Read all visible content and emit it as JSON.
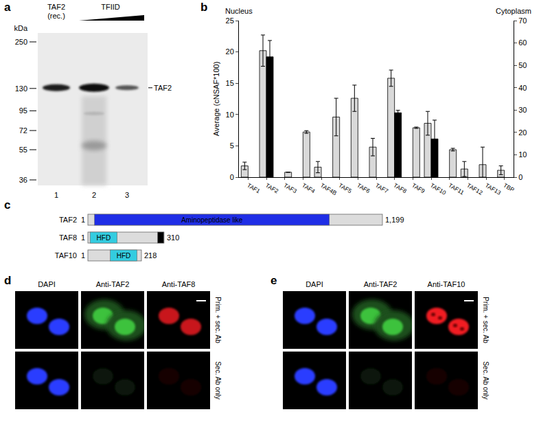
{
  "panel_a": {
    "label": "a",
    "lane1_header": [
      "TAF2",
      "(rec.)"
    ],
    "group_header": "TFIID",
    "unit": "kDa",
    "markers": [
      250,
      130,
      95,
      72,
      55,
      36
    ],
    "lanes": [
      "1",
      "2",
      "3"
    ],
    "band_label": "TAF2"
  },
  "chart_data": {
    "label": "b",
    "type": "bar",
    "y_axis_title": "Average (cNSAF*100)",
    "y_axis_caption": "Nucleus",
    "y2_axis_caption": "Cytoplasm",
    "categories": [
      "TAF1",
      "TAF2",
      "TAF3",
      "TAF4",
      "TAF4B",
      "TAF5",
      "TAF6",
      "TAF7",
      "TAF8",
      "TAF9",
      "TAF10",
      "TAF11",
      "TAF12",
      "TAF13",
      "TBP"
    ],
    "series": [
      {
        "name": "Nucleus",
        "axis": "y",
        "color": "#d9d9d9",
        "values": [
          1.8,
          20.2,
          null,
          null,
          1.6,
          9.6,
          12.6,
          4.8,
          15.8,
          null,
          8.6,
          null,
          1.3,
          2.0,
          1.1
        ],
        "errors": [
          0.6,
          2.5,
          null,
          null,
          0.9,
          3.0,
          2.1,
          1.4,
          1.3,
          null,
          1.9,
          null,
          1.2,
          2.8,
          0.7
        ]
      },
      {
        "name": "Cytoplasm",
        "axis": "y2",
        "colors": [
          "#d9d9d9",
          "#000000",
          "#d9d9d9",
          "#d9d9d9",
          "#d9d9d9",
          "#d9d9d9",
          "#d9d9d9",
          "#d9d9d9",
          "#000000",
          "#d9d9d9",
          "#000000",
          "#d9d9d9",
          "#d9d9d9",
          "#d9d9d9",
          "#d9d9d9"
        ],
        "values": [
          null,
          53.8,
          2.2,
          20.2,
          null,
          null,
          null,
          null,
          28.8,
          22.1,
          17.1,
          12.3,
          null,
          null,
          null
        ],
        "errors": [
          null,
          7.3,
          0,
          0.6,
          null,
          null,
          null,
          null,
          1.1,
          0.3,
          8.4,
          0.6,
          null,
          null,
          null
        ]
      }
    ],
    "ylim": [
      0,
      25
    ],
    "yticks": [
      0,
      5,
      10,
      15,
      20,
      25
    ],
    "y2lim": [
      0,
      70
    ],
    "y2ticks": [
      0,
      10,
      20,
      30,
      40,
      50,
      60,
      70
    ],
    "grid": false
  },
  "panel_c": {
    "label": "c",
    "proteins": [
      {
        "name": "TAF2",
        "start": 1,
        "length": 1199,
        "length_label": "1,199",
        "domains": [
          {
            "label": "Aminopeptidase like",
            "start": 28,
            "end": 984,
            "color": "#1f2ee6"
          }
        ]
      },
      {
        "name": "TAF8",
        "start": 1,
        "length": 310,
        "domains": [
          {
            "label": "HFD",
            "start": 10,
            "end": 120,
            "color": "#33cce0"
          },
          {
            "start": 285,
            "end": 310,
            "color": "#000000"
          }
        ]
      },
      {
        "name": "TAF10",
        "start": 1,
        "length": 218,
        "domains": [
          {
            "label": "HFD",
            "start": 92,
            "end": 201,
            "color": "#33cce0"
          }
        ]
      }
    ]
  },
  "panel_d": {
    "label": "d",
    "columns": [
      "DAPI",
      "Anti-TAF2",
      "Anti-TAF8"
    ],
    "rows": [
      "Prim. + sec. Ab",
      "Sec. Ab only"
    ]
  },
  "panel_e": {
    "label": "e",
    "columns": [
      "DAPI",
      "Anti-TAF2",
      "Anti-TAF10"
    ],
    "rows": [
      "Prim. + sec. Ab",
      "Sec. Ab only"
    ]
  }
}
